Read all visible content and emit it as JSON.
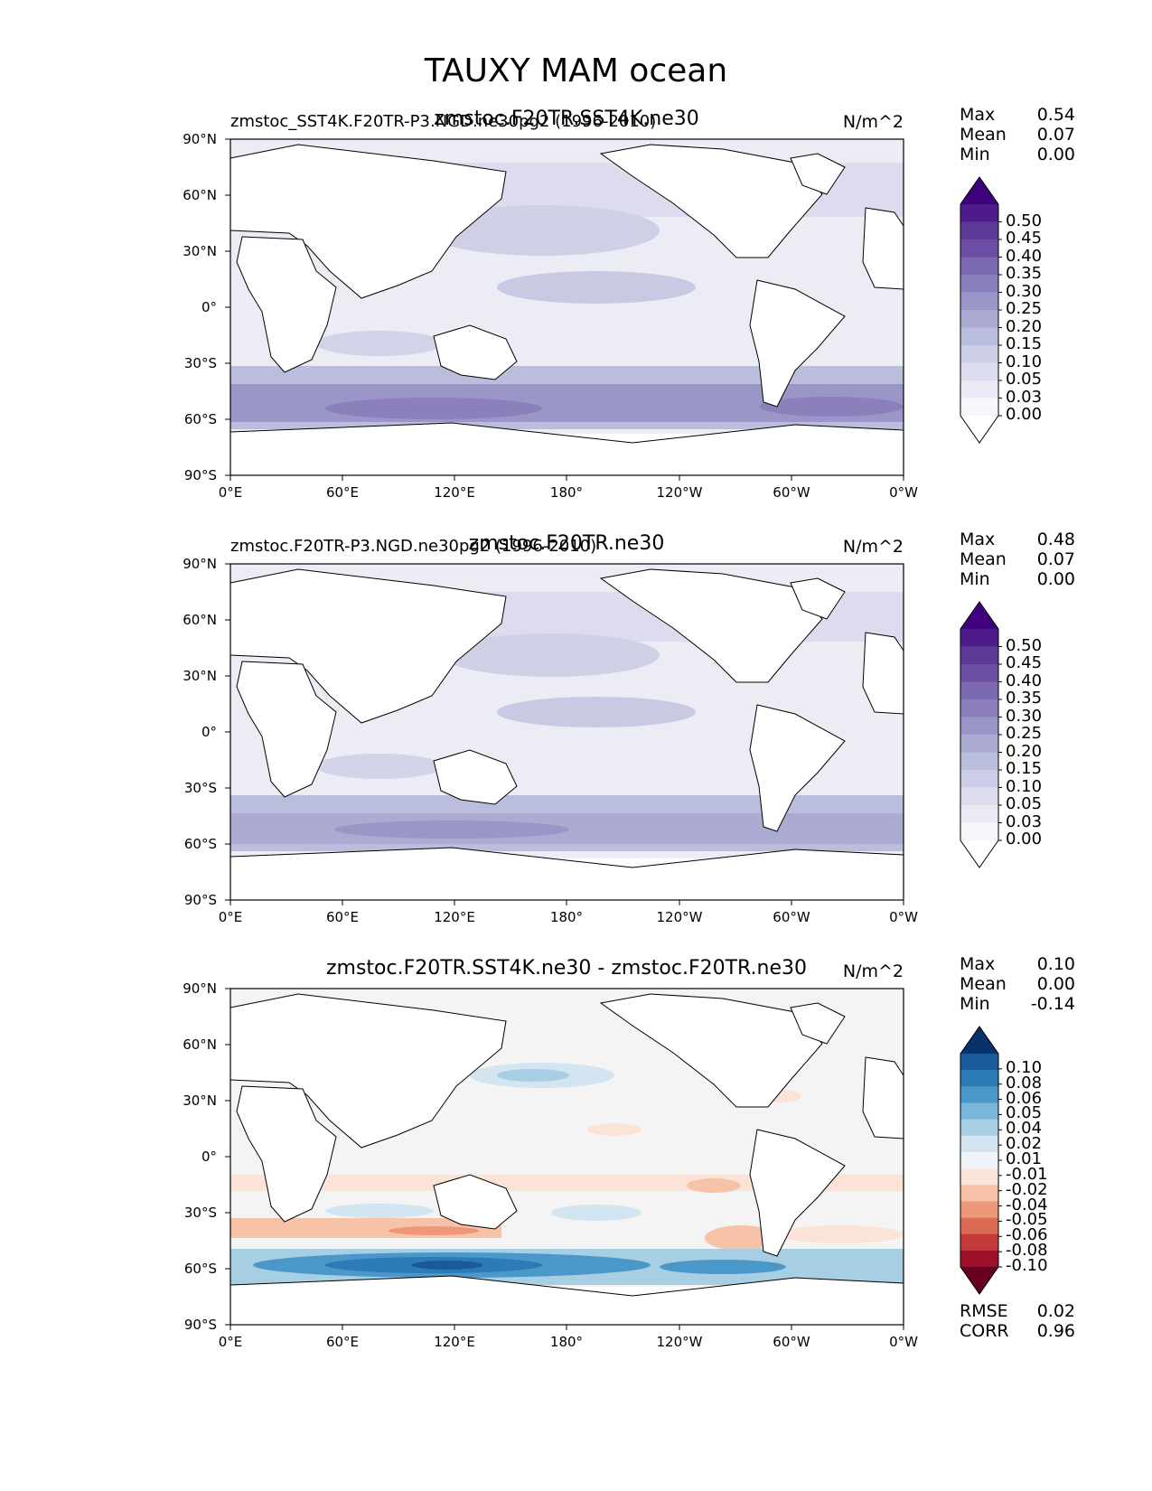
{
  "title": "TAUXY MAM ocean",
  "units": "N/m^2",
  "x_ticks": [
    "0°E",
    "60°E",
    "120°E",
    "180°",
    "120°W",
    "60°W",
    "0°W"
  ],
  "y_ticks": [
    "90°N",
    "60°N",
    "30°N",
    "0°",
    "30°S",
    "60°S",
    "90°S"
  ],
  "stats_labels": {
    "max": "Max",
    "mean": "Mean",
    "min": "Min",
    "rmse": "RMSE",
    "corr": "CORR"
  },
  "panels": [
    {
      "left_label": "zmstoc_SST4K.F20TR-P3.NGD.ne30pg2 (1996-2010)",
      "center_label": "zmstoc.F20TR.SST4K.ne30",
      "max": "0.54",
      "mean": "0.07",
      "min": "0.00",
      "colorbar": [
        "0.50",
        "0.45",
        "0.40",
        "0.35",
        "0.30",
        "0.25",
        "0.20",
        "0.15",
        "0.10",
        "0.05",
        "0.03",
        "0.00"
      ],
      "colors": [
        "#3f007d",
        "#4e1c8a",
        "#5e3a98",
        "#6c4ea5",
        "#7b69b1",
        "#8b80bc",
        "#9a97c8",
        "#ababd2",
        "#bbbddd",
        "#cccde6",
        "#dcdcee",
        "#eaeaf4",
        "#f7f6fb",
        "#ffffff"
      ]
    },
    {
      "left_label": "zmstoc.F20TR-P3.NGD.ne30pg2 (1996-2010)",
      "center_label": "zmstoc.F20TR.ne30",
      "max": "0.48",
      "mean": "0.07",
      "min": "0.00",
      "colorbar": [
        "0.50",
        "0.45",
        "0.40",
        "0.35",
        "0.30",
        "0.25",
        "0.20",
        "0.15",
        "0.10",
        "0.05",
        "0.03",
        "0.00"
      ],
      "colors": [
        "#3f007d",
        "#4e1c8a",
        "#5e3a98",
        "#6c4ea5",
        "#7b69b1",
        "#8b80bc",
        "#9a97c8",
        "#ababd2",
        "#bbbddd",
        "#cccde6",
        "#dcdcee",
        "#eaeaf4",
        "#f7f6fb",
        "#ffffff"
      ]
    },
    {
      "left_label": "",
      "center_label": "zmstoc.F20TR.SST4K.ne30 - zmstoc.F20TR.ne30",
      "max": "0.10",
      "mean": "0.00",
      "min": "-0.14",
      "rmse": "0.02",
      "corr": "0.96",
      "colorbar": [
        "0.10",
        "0.08",
        "0.06",
        "0.05",
        "0.04",
        "0.02",
        "0.01",
        "-0.01",
        "-0.02",
        "-0.04",
        "-0.05",
        "-0.06",
        "-0.08",
        "-0.10"
      ],
      "colors": [
        "#08306b",
        "#1a5a9b",
        "#2c7bb6",
        "#4a98c9",
        "#7ab6d9",
        "#a8cee4",
        "#d2e5f0",
        "#eef4f8",
        "#fbe4d7",
        "#f6c2a8",
        "#ee9879",
        "#dc6b56",
        "#c43a3a",
        "#9c1127",
        "#67001f"
      ]
    }
  ]
}
